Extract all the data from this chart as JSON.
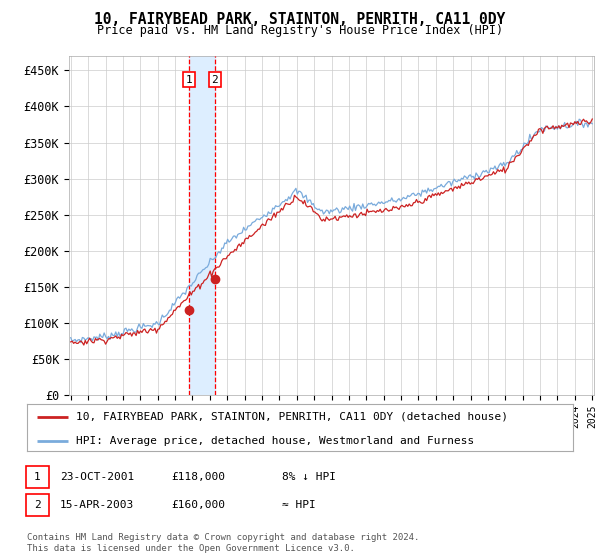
{
  "title": "10, FAIRYBEAD PARK, STAINTON, PENRITH, CA11 0DY",
  "subtitle": "Price paid vs. HM Land Registry's House Price Index (HPI)",
  "ylim": [
    0,
    470000
  ],
  "yticks": [
    0,
    50000,
    100000,
    150000,
    200000,
    250000,
    300000,
    350000,
    400000,
    450000
  ],
  "ytick_labels": [
    "£0",
    "£50K",
    "£100K",
    "£150K",
    "£200K",
    "£250K",
    "£300K",
    "£350K",
    "£400K",
    "£450K"
  ],
  "x_start_year": 1995,
  "x_end_year": 2025,
  "sale1_date": 2001.81,
  "sale1_price": 118000,
  "sale2_date": 2003.29,
  "sale2_price": 160000,
  "hpi_line_color": "#7aabdc",
  "price_line_color": "#cc2222",
  "shading_color": "#ddeeff",
  "grid_color": "#cccccc",
  "legend_entries": [
    "10, FAIRYBEAD PARK, STAINTON, PENRITH, CA11 0DY (detached house)",
    "HPI: Average price, detached house, Westmorland and Furness"
  ],
  "sale_labels": [
    "1",
    "2"
  ],
  "sale_texts": [
    [
      "23-OCT-2001",
      "£118,000",
      "8% ↓ HPI"
    ],
    [
      "15-APR-2003",
      "£160,000",
      "≈ HPI"
    ]
  ],
  "footer": "Contains HM Land Registry data © Crown copyright and database right 2024.\nThis data is licensed under the Open Government Licence v3.0."
}
